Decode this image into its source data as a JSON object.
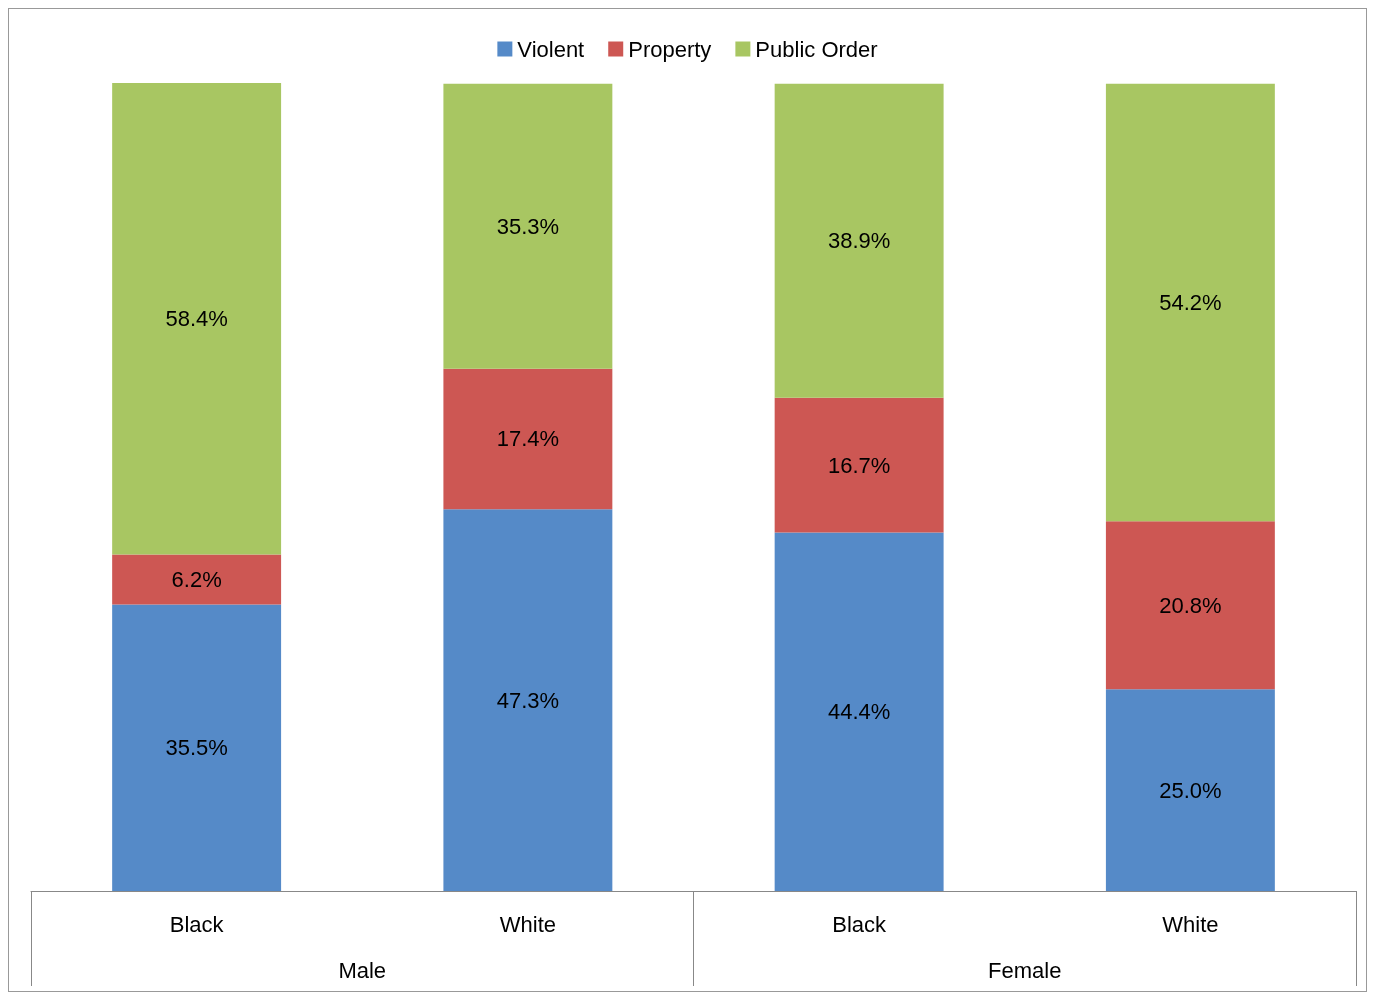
{
  "chart_data": {
    "type": "bar",
    "stacked": true,
    "legend": "top",
    "grid": false,
    "categories": [
      "Black",
      "White",
      "Black",
      "White"
    ],
    "annotations": [
      "Male",
      "Female"
    ],
    "series": [
      {
        "name": "Violent",
        "color": "#558ac8",
        "values": [
          35.5,
          47.3,
          44.4,
          25.0
        ],
        "value_labels": [
          "35.5%",
          "47.3%",
          "44.4%",
          "25.0%"
        ]
      },
      {
        "name": "Property",
        "color": "#cd5753",
        "values": [
          6.2,
          17.4,
          16.7,
          20.8
        ],
        "value_labels": [
          "6.2%",
          "17.4%",
          "16.7%",
          "20.8%"
        ]
      },
      {
        "name": "Public Order",
        "color": "#a8c662",
        "values": [
          58.4,
          35.3,
          38.9,
          54.2
        ],
        "value_labels": [
          "58.4%",
          "35.3%",
          "38.9%",
          "54.2%"
        ]
      }
    ]
  }
}
